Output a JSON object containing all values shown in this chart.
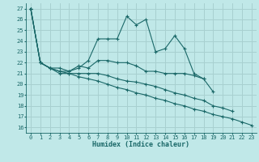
{
  "xlabel": "Humidex (Indice chaleur)",
  "bg_color": "#c0e8e8",
  "grid_color": "#a8d0d0",
  "line_color": "#1a6868",
  "xlim": [
    -0.5,
    23.5
  ],
  "ylim": [
    15.5,
    27.5
  ],
  "xticks": [
    0,
    1,
    2,
    3,
    4,
    5,
    6,
    7,
    8,
    9,
    10,
    11,
    12,
    13,
    14,
    15,
    16,
    17,
    18,
    19,
    20,
    21,
    22,
    23
  ],
  "yticks": [
    16,
    17,
    18,
    19,
    20,
    21,
    22,
    23,
    24,
    25,
    26,
    27
  ],
  "series": [
    [
      27,
      22,
      21.5,
      21.2,
      21.2,
      21.5,
      22.2,
      24.2,
      24.2,
      24.2,
      26.3,
      25.5,
      26.0,
      23.0,
      23.3,
      24.5,
      23.3,
      21.0,
      20.5,
      19.3,
      null,
      null,
      null,
      null
    ],
    [
      27,
      22,
      21.5,
      21.5,
      21.2,
      21.7,
      21.5,
      22.2,
      22.2,
      22.0,
      22.0,
      21.7,
      21.2,
      21.2,
      21.0,
      21.0,
      21.0,
      20.8,
      20.5,
      null,
      null,
      null,
      null,
      null
    ],
    [
      27,
      22,
      21.5,
      21.2,
      21.0,
      21.0,
      21.0,
      21.0,
      20.8,
      20.5,
      20.3,
      20.2,
      20.0,
      19.8,
      19.5,
      19.2,
      19.0,
      18.7,
      18.5,
      18.0,
      17.8,
      17.5,
      null,
      null
    ],
    [
      27,
      22,
      21.5,
      21.0,
      21.0,
      20.7,
      20.5,
      20.3,
      20.0,
      19.7,
      19.5,
      19.2,
      19.0,
      18.7,
      18.5,
      18.2,
      18.0,
      17.7,
      17.5,
      17.2,
      17.0,
      16.8,
      16.5,
      16.2
    ]
  ]
}
